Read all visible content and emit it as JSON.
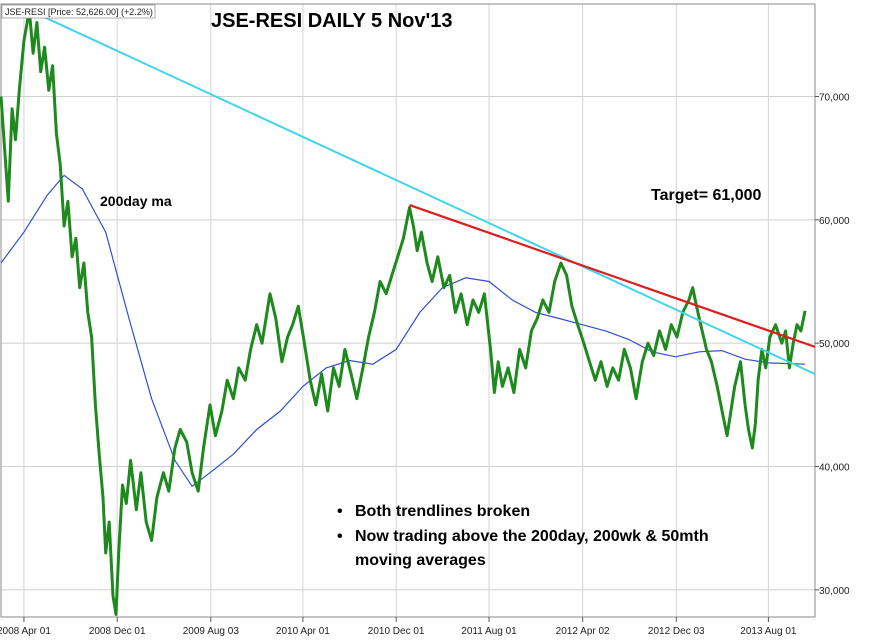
{
  "chart_data": {
    "type": "line",
    "title": "JSE-RESI DAILY  5 Nov'13",
    "legend": "JSE-RESI [Price: 52,626.00] (+2.2%)",
    "x_tick_labels": [
      "2008 Apr 01",
      "2008 Dec 01",
      "2009 Aug 03",
      "2010 Apr 01",
      "2010 Dec 01",
      "2011 Aug 01",
      "2012 Apr 02",
      "2012 Dec 03",
      "2013 Aug 01"
    ],
    "y_tick_labels": [
      "30,000",
      "40,000",
      "50,000",
      "60,000",
      "70,000"
    ],
    "ylim": [
      27800,
      77500
    ],
    "xlim": [
      "2008-02-01",
      "2013-12-01"
    ],
    "grid": true,
    "series": [
      {
        "role": "price",
        "color": "#1e8a1e",
        "points": [
          [
            "2008-02-01",
            70000
          ],
          [
            "2008-02-10",
            66000
          ],
          [
            "2008-02-20",
            61500
          ],
          [
            "2008-03-01",
            69000
          ],
          [
            "2008-03-10",
            66500
          ],
          [
            "2008-03-20",
            70500
          ],
          [
            "2008-04-01",
            74500
          ],
          [
            "2008-04-15",
            77000
          ],
          [
            "2008-04-25",
            73500
          ],
          [
            "2008-05-05",
            76000
          ],
          [
            "2008-05-15",
            72000
          ],
          [
            "2008-05-25",
            74000
          ],
          [
            "2008-06-05",
            70500
          ],
          [
            "2008-06-15",
            72500
          ],
          [
            "2008-06-25",
            67000
          ],
          [
            "2008-07-05",
            64500
          ],
          [
            "2008-07-15",
            59500
          ],
          [
            "2008-07-25",
            61500
          ],
          [
            "2008-08-05",
            57000
          ],
          [
            "2008-08-15",
            58500
          ],
          [
            "2008-08-25",
            54500
          ],
          [
            "2008-09-05",
            56500
          ],
          [
            "2008-09-15",
            52500
          ],
          [
            "2008-09-25",
            50500
          ],
          [
            "2008-10-05",
            45000
          ],
          [
            "2008-10-15",
            41000
          ],
          [
            "2008-10-25",
            37500
          ],
          [
            "2008-11-01",
            33000
          ],
          [
            "2008-11-10",
            35500
          ],
          [
            "2008-11-20",
            29500
          ],
          [
            "2008-11-28",
            28000
          ],
          [
            "2008-12-05",
            33000
          ],
          [
            "2008-12-15",
            38500
          ],
          [
            "2008-12-25",
            37000
          ],
          [
            "2009-01-05",
            40500
          ],
          [
            "2009-01-20",
            36500
          ],
          [
            "2009-02-01",
            39500
          ],
          [
            "2009-02-15",
            35500
          ],
          [
            "2009-03-01",
            34000
          ],
          [
            "2009-03-15",
            37500
          ],
          [
            "2009-04-01",
            39500
          ],
          [
            "2009-04-15",
            38000
          ],
          [
            "2009-05-01",
            41500
          ],
          [
            "2009-05-15",
            43000
          ],
          [
            "2009-06-01",
            42000
          ],
          [
            "2009-06-15",
            39500
          ],
          [
            "2009-07-01",
            38000
          ],
          [
            "2009-07-15",
            41500
          ],
          [
            "2009-08-01",
            45000
          ],
          [
            "2009-08-15",
            42500
          ],
          [
            "2009-09-01",
            44500
          ],
          [
            "2009-09-15",
            47000
          ],
          [
            "2009-10-01",
            45500
          ],
          [
            "2009-10-15",
            48000
          ],
          [
            "2009-11-01",
            47000
          ],
          [
            "2009-11-15",
            49500
          ],
          [
            "2009-12-01",
            51500
          ],
          [
            "2009-12-15",
            50000
          ],
          [
            "2010-01-05",
            54000
          ],
          [
            "2010-01-20",
            52000
          ],
          [
            "2010-02-05",
            48500
          ],
          [
            "2010-02-20",
            50500
          ],
          [
            "2010-03-05",
            51500
          ],
          [
            "2010-03-20",
            53000
          ],
          [
            "2010-04-05",
            50000
          ],
          [
            "2010-04-20",
            47000
          ],
          [
            "2010-05-05",
            45000
          ],
          [
            "2010-05-20",
            47500
          ],
          [
            "2010-06-05",
            44500
          ],
          [
            "2010-06-20",
            48000
          ],
          [
            "2010-07-05",
            46500
          ],
          [
            "2010-07-20",
            49500
          ],
          [
            "2010-08-05",
            47500
          ],
          [
            "2010-08-20",
            45500
          ],
          [
            "2010-09-05",
            48000
          ],
          [
            "2010-09-20",
            50500
          ],
          [
            "2010-10-05",
            52500
          ],
          [
            "2010-10-20",
            55000
          ],
          [
            "2010-11-05",
            54000
          ],
          [
            "2010-11-20",
            55500
          ],
          [
            "2010-12-05",
            57000
          ],
          [
            "2010-12-20",
            58500
          ],
          [
            "2011-01-05",
            61000
          ],
          [
            "2011-01-15",
            59500
          ],
          [
            "2011-01-25",
            57500
          ],
          [
            "2011-02-05",
            59000
          ],
          [
            "2011-02-20",
            56500
          ],
          [
            "2011-03-05",
            55000
          ],
          [
            "2011-03-20",
            57000
          ],
          [
            "2011-04-05",
            54500
          ],
          [
            "2011-04-20",
            55500
          ],
          [
            "2011-05-05",
            52500
          ],
          [
            "2011-05-20",
            54000
          ],
          [
            "2011-06-05",
            51500
          ],
          [
            "2011-06-20",
            53500
          ],
          [
            "2011-07-05",
            52500
          ],
          [
            "2011-07-20",
            54000
          ],
          [
            "2011-08-05",
            49500
          ],
          [
            "2011-08-15",
            46000
          ],
          [
            "2011-08-25",
            48500
          ],
          [
            "2011-09-05",
            46500
          ],
          [
            "2011-09-20",
            48000
          ],
          [
            "2011-10-05",
            46000
          ],
          [
            "2011-10-20",
            49500
          ],
          [
            "2011-11-05",
            48000
          ],
          [
            "2011-11-20",
            51000
          ],
          [
            "2011-12-05",
            52000
          ],
          [
            "2011-12-20",
            53500
          ],
          [
            "2012-01-05",
            52500
          ],
          [
            "2012-01-20",
            55000
          ],
          [
            "2012-02-05",
            56500
          ],
          [
            "2012-02-20",
            55500
          ],
          [
            "2012-03-05",
            53000
          ],
          [
            "2012-03-20",
            51500
          ],
          [
            "2012-04-05",
            50000
          ],
          [
            "2012-04-20",
            48500
          ],
          [
            "2012-05-05",
            47000
          ],
          [
            "2012-05-20",
            48500
          ],
          [
            "2012-06-05",
            46500
          ],
          [
            "2012-06-20",
            48000
          ],
          [
            "2012-07-05",
            47000
          ],
          [
            "2012-07-20",
            49500
          ],
          [
            "2012-08-05",
            48000
          ],
          [
            "2012-08-20",
            45500
          ],
          [
            "2012-09-05",
            48500
          ],
          [
            "2012-09-20",
            50000
          ],
          [
            "2012-10-05",
            49000
          ],
          [
            "2012-10-20",
            51000
          ],
          [
            "2012-11-05",
            49500
          ],
          [
            "2012-11-20",
            51500
          ],
          [
            "2012-12-05",
            50500
          ],
          [
            "2012-12-20",
            52500
          ],
          [
            "2013-01-05",
            53500
          ],
          [
            "2013-01-15",
            54500
          ],
          [
            "2013-01-25",
            53000
          ],
          [
            "2013-02-05",
            51500
          ],
          [
            "2013-02-20",
            49500
          ],
          [
            "2013-03-05",
            48500
          ],
          [
            "2013-03-20",
            46500
          ],
          [
            "2013-04-05",
            44000
          ],
          [
            "2013-04-15",
            42500
          ],
          [
            "2013-04-25",
            44500
          ],
          [
            "2013-05-05",
            46500
          ],
          [
            "2013-05-20",
            48500
          ],
          [
            "2013-06-01",
            45000
          ],
          [
            "2013-06-10",
            43000
          ],
          [
            "2013-06-20",
            41500
          ],
          [
            "2013-06-28",
            43500
          ],
          [
            "2013-07-05",
            47000
          ],
          [
            "2013-07-15",
            49500
          ],
          [
            "2013-07-25",
            48000
          ],
          [
            "2013-08-05",
            50500
          ],
          [
            "2013-08-20",
            51500
          ],
          [
            "2013-09-05",
            50000
          ],
          [
            "2013-09-15",
            51000
          ],
          [
            "2013-09-25",
            48000
          ],
          [
            "2013-10-05",
            50000
          ],
          [
            "2013-10-15",
            51500
          ],
          [
            "2013-10-25",
            51000
          ],
          [
            "2013-11-05",
            52626
          ]
        ]
      },
      {
        "role": "moving-average",
        "label": "200day ma",
        "color": "#2f4fd0",
        "points": [
          [
            "2008-02-01",
            56500
          ],
          [
            "2008-04-01",
            59000
          ],
          [
            "2008-06-01",
            62000
          ],
          [
            "2008-07-15",
            63600
          ],
          [
            "2008-09-01",
            62500
          ],
          [
            "2008-11-01",
            59000
          ],
          [
            "2009-01-01",
            52000
          ],
          [
            "2009-03-01",
            45500
          ],
          [
            "2009-05-01",
            40500
          ],
          [
            "2009-06-15",
            38400
          ],
          [
            "2009-08-01",
            39500
          ],
          [
            "2009-10-01",
            41000
          ],
          [
            "2009-12-01",
            43000
          ],
          [
            "2010-02-01",
            44500
          ],
          [
            "2010-04-01",
            46500
          ],
          [
            "2010-06-01",
            48000
          ],
          [
            "2010-08-01",
            48600
          ],
          [
            "2010-10-01",
            48300
          ],
          [
            "2010-12-01",
            49500
          ],
          [
            "2011-02-01",
            52500
          ],
          [
            "2011-04-01",
            54500
          ],
          [
            "2011-06-01",
            55300
          ],
          [
            "2011-08-01",
            55000
          ],
          [
            "2011-10-01",
            53500
          ],
          [
            "2011-12-01",
            52500
          ],
          [
            "2012-02-01",
            52000
          ],
          [
            "2012-04-01",
            51500
          ],
          [
            "2012-06-01",
            51000
          ],
          [
            "2012-08-01",
            50300
          ],
          [
            "2012-10-01",
            49300
          ],
          [
            "2012-12-01",
            48900
          ],
          [
            "2013-02-01",
            49300
          ],
          [
            "2013-04-01",
            49400
          ],
          [
            "2013-06-01",
            48700
          ],
          [
            "2013-08-01",
            48400
          ],
          [
            "2013-11-05",
            48300
          ]
        ]
      }
    ],
    "trendlines": [
      {
        "from": [
          "2008-04-15",
          77000
        ],
        "to": [
          "2013-12-01",
          47500
        ],
        "color": "#3fd4ee"
      },
      {
        "from": [
          "2011-01-05",
          61200
        ],
        "to": [
          "2013-12-01",
          49700
        ],
        "color": "#dc1e1e"
      }
    ],
    "annotations": [
      {
        "text": "Target= 61,000"
      },
      {
        "text": "Both trendlines broken",
        "bullet": "•"
      },
      {
        "text": "Now trading above the 200day, 200wk & 50mth",
        "bullet": "•"
      },
      {
        "text": "moving averages"
      }
    ]
  }
}
